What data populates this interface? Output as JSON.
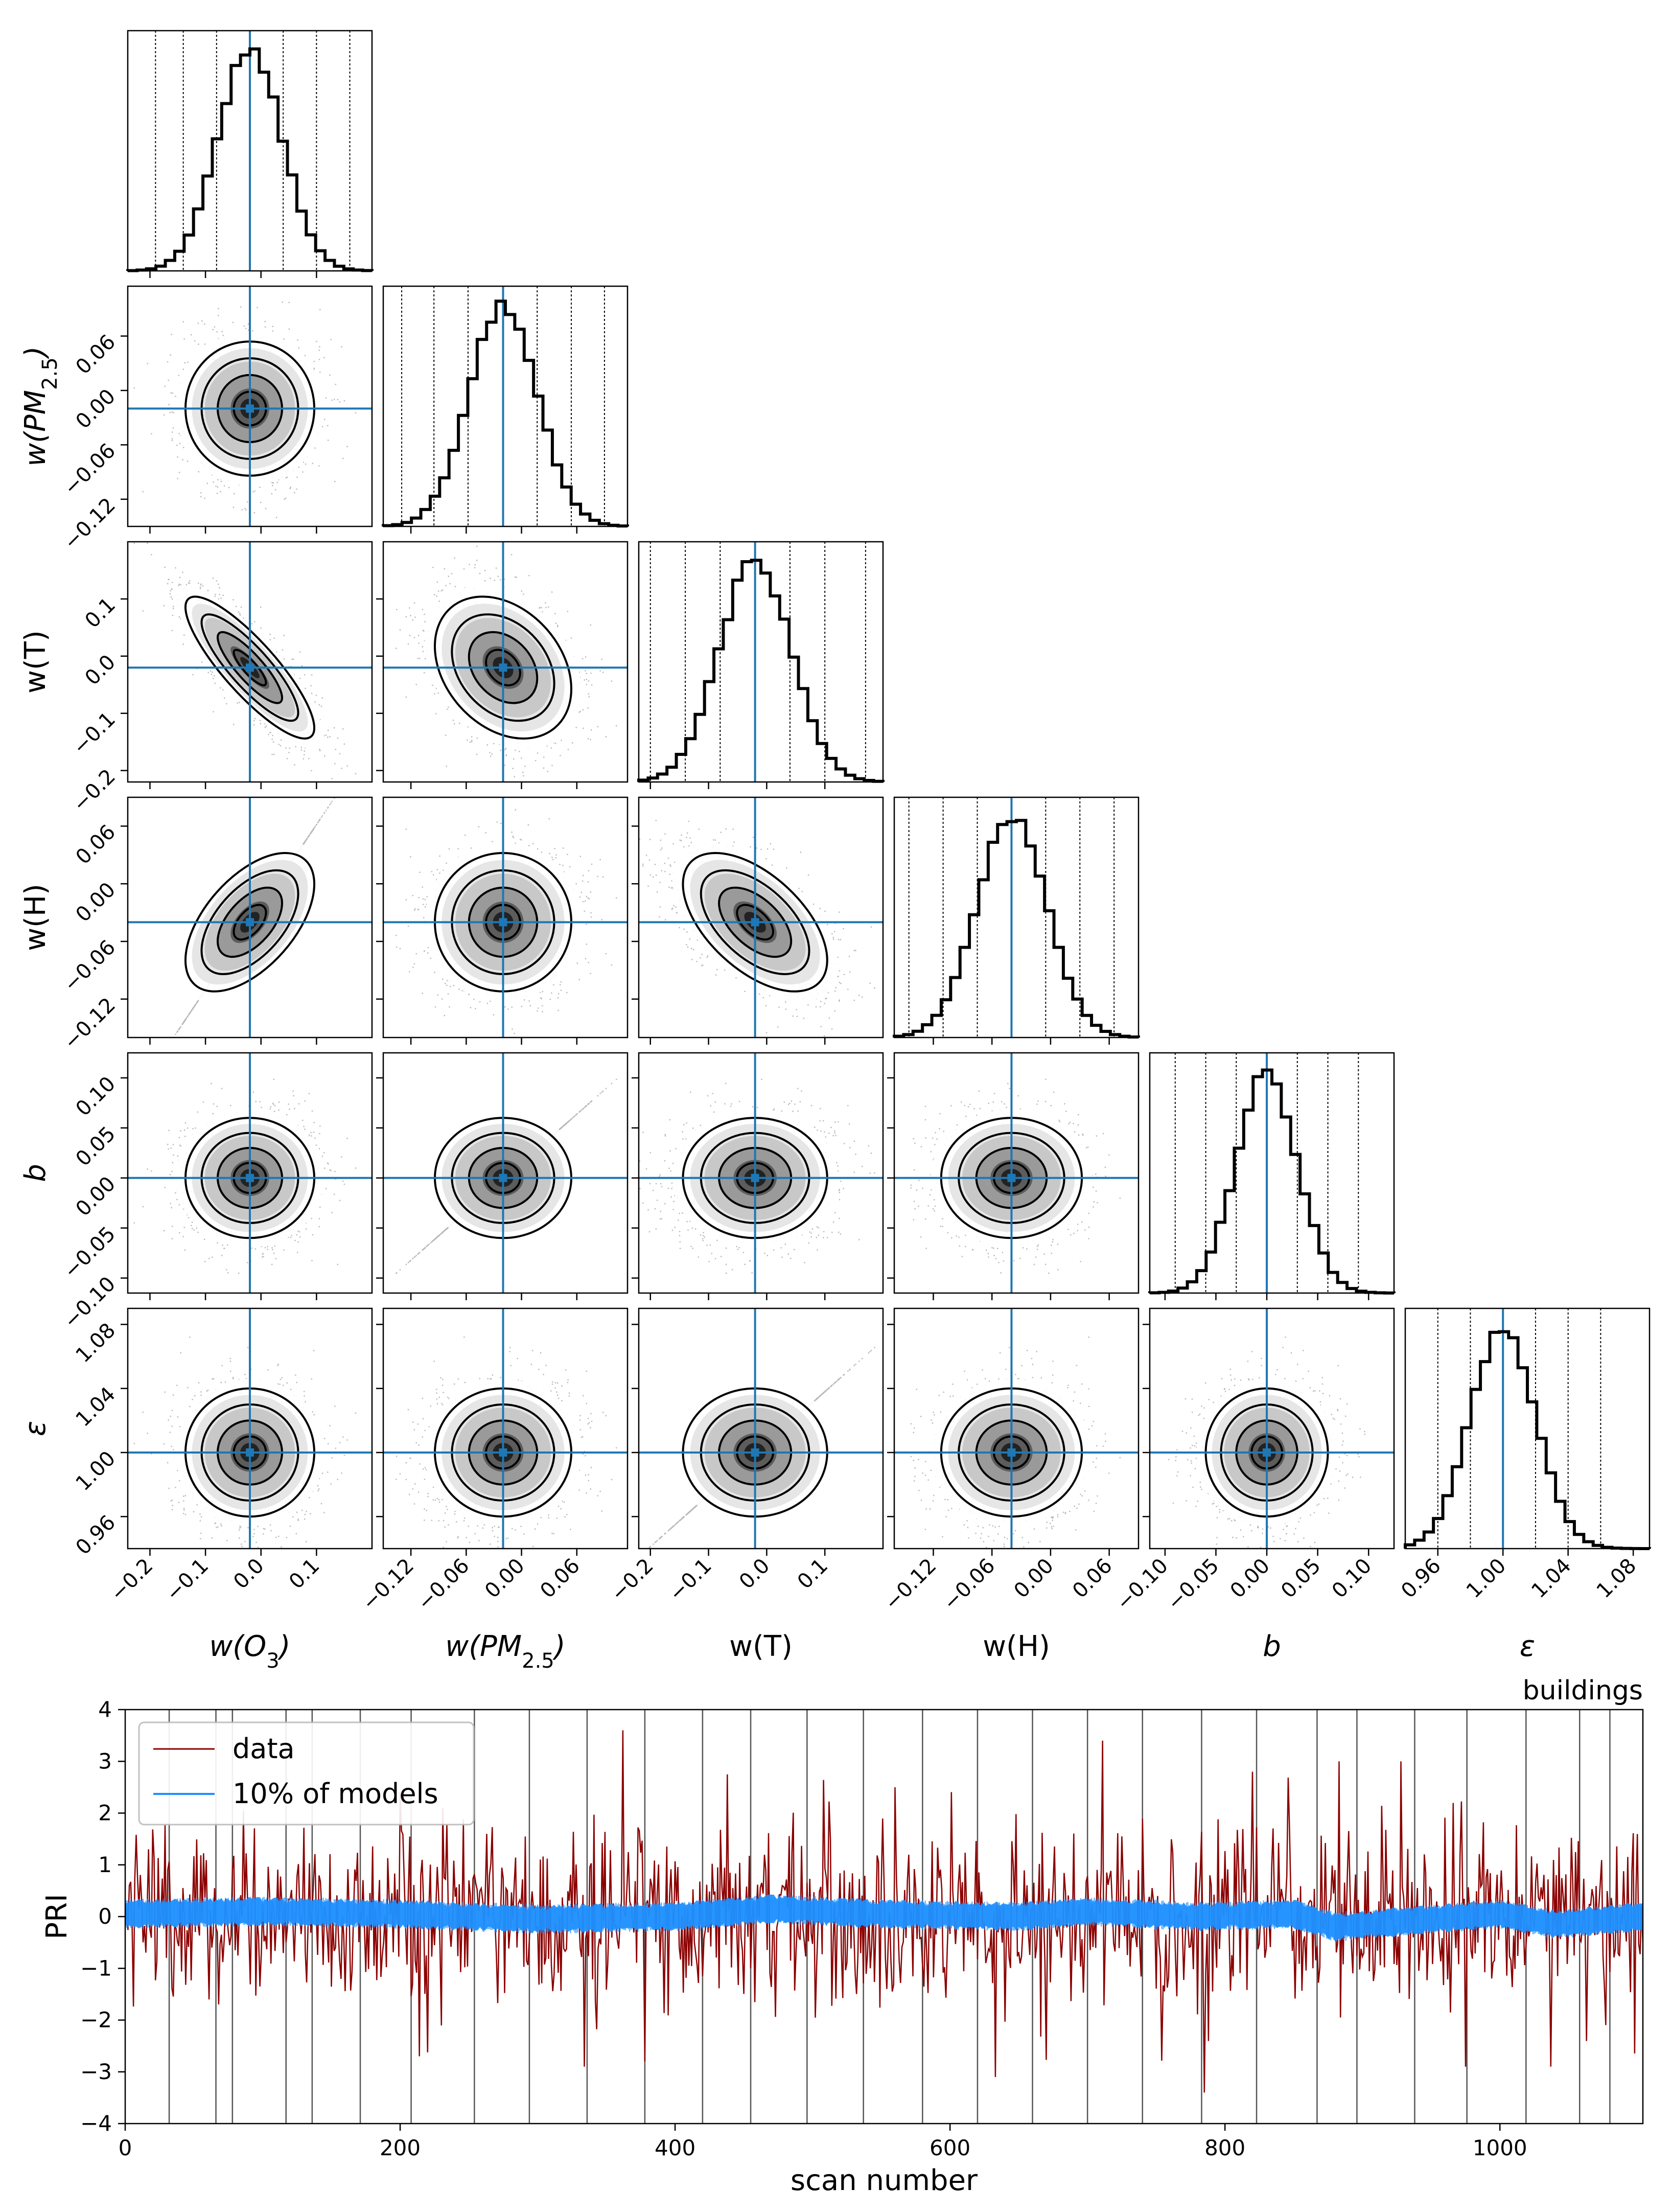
{
  "figure": {
    "colors": {
      "frame": "#000000",
      "truth": "#1f77b4",
      "hist": "#000000",
      "data_line": "#8b0000",
      "model_band": "#1e90ff",
      "vline": "#555555"
    },
    "hist_note": "",
    "legend_position": "upper-left"
  },
  "chart_data": [
    {
      "type": "corner",
      "parameters": [
        {
          "key": "wO3",
          "label_main": "w(O",
          "label_sub": "3",
          "label_end": ")",
          "italic": true,
          "ticks": [
            "−0.2",
            "−0.1",
            "0.0",
            "0.1"
          ],
          "tick_values": [
            -0.2,
            -0.1,
            0.0,
            0.1
          ],
          "range": [
            -0.24,
            0.2
          ],
          "truth": -0.02,
          "mean": -0.02,
          "std": 0.058,
          "quantile_lines": [
            -0.19,
            -0.14,
            -0.08,
            -0.02,
            0.04,
            0.1,
            0.16
          ]
        },
        {
          "key": "wPM",
          "label_main": "w(PM",
          "label_sub": "2.5",
          "label_end": ")",
          "italic": true,
          "ticks": [
            "−0.12",
            "−0.06",
            "0.00",
            "0.06"
          ],
          "tick_values": [
            -0.12,
            -0.06,
            0.0,
            0.06
          ],
          "range": [
            -0.15,
            0.115
          ],
          "truth": -0.02,
          "mean": -0.02,
          "std": 0.037,
          "quantile_lines": [
            -0.13,
            -0.095,
            -0.058,
            -0.02,
            0.017,
            0.054,
            0.09
          ]
        },
        {
          "key": "wT",
          "label_main": "w(T)",
          "label_sub": "",
          "label_end": "",
          "italic": false,
          "ticks": [
            "−0.2",
            "−0.1",
            "0.0",
            "0.1"
          ],
          "tick_values": [
            -0.2,
            -0.1,
            0.0,
            0.1
          ],
          "range": [
            -0.22,
            0.2
          ],
          "truth": -0.02,
          "mean": -0.02,
          "std": 0.062,
          "quantile_lines": [
            -0.2,
            -0.14,
            -0.08,
            -0.02,
            0.04,
            0.1,
            0.17
          ]
        },
        {
          "key": "wH",
          "label_main": "w(H)",
          "label_sub": "",
          "label_end": "",
          "italic": false,
          "ticks": [
            "−0.12",
            "−0.06",
            "0.00",
            "0.06"
          ],
          "tick_values": [
            -0.12,
            -0.06,
            0.0,
            0.06
          ],
          "range": [
            -0.16,
            0.09
          ],
          "truth": -0.04,
          "mean": -0.04,
          "std": 0.036,
          "quantile_lines": [
            -0.145,
            -0.11,
            -0.075,
            -0.04,
            -0.005,
            0.03,
            0.065
          ]
        },
        {
          "key": "b",
          "label_main": "b",
          "label_sub": "",
          "label_end": "",
          "italic": true,
          "ticks": [
            "−0.10",
            "−0.05",
            "0.00",
            "0.05",
            "0.10"
          ],
          "tick_values": [
            -0.1,
            -0.05,
            0.0,
            0.05,
            0.1
          ],
          "range": [
            -0.115,
            0.125
          ],
          "truth": 0.0,
          "mean": 0.0,
          "std": 0.03,
          "quantile_lines": [
            -0.09,
            -0.06,
            -0.03,
            0.0,
            0.03,
            0.06,
            0.09
          ]
        },
        {
          "key": "eps",
          "label_main": "ε",
          "label_sub": "",
          "label_end": "",
          "italic": true,
          "ticks": [
            "0.96",
            "1.00",
            "1.04",
            "1.08"
          ],
          "tick_values": [
            0.96,
            1.0,
            1.04,
            1.08
          ],
          "range": [
            0.94,
            1.09
          ],
          "truth": 1.0,
          "mean": 1.0,
          "std": 0.02,
          "quantile_lines": [
            0.94,
            0.96,
            0.98,
            1.0,
            1.02,
            1.04,
            1.06
          ]
        }
      ],
      "correlations": [
        [
          1,
          0,
          -0.85,
          0.55,
          0,
          0
        ],
        [
          0,
          1,
          -0.3,
          0,
          0,
          0
        ],
        [
          -0.85,
          -0.3,
          1,
          -0.55,
          0,
          0
        ],
        [
          0.55,
          0,
          -0.55,
          1,
          0,
          0
        ],
        [
          0,
          0,
          0,
          0,
          1,
          0
        ],
        [
          0,
          0,
          0,
          0,
          0,
          1
        ]
      ]
    },
    {
      "type": "line",
      "title": "buildings",
      "xlabel": "scan number",
      "ylabel": "PRI",
      "xlim": [
        0,
        1104
      ],
      "ylim": [
        -4,
        4
      ],
      "xticks": [
        0,
        200,
        400,
        600,
        800,
        1000
      ],
      "yticks": [
        -4,
        -3,
        -2,
        -1,
        0,
        1,
        2,
        3,
        4
      ],
      "series": [
        {
          "name": "data",
          "color": "#8b0000",
          "mean": 0.0,
          "std": 0.85,
          "notable_points": [
            [
              214,
              -2.7
            ],
            [
              334,
              -2.9
            ],
            [
              362,
              3.6
            ],
            [
              378,
              -2.8
            ],
            [
              560,
              2.5
            ],
            [
              633,
              -3.1
            ],
            [
              711,
              3.4
            ],
            [
              785,
              -3.4
            ],
            [
              820,
              2.8
            ],
            [
              883,
              3.0
            ],
            [
              928,
              3.0
            ],
            [
              975,
              -2.9
            ],
            [
              1037,
              -2.9
            ]
          ]
        },
        {
          "name": "10% of models",
          "color": "#1e90ff",
          "center": 0.0,
          "halfwidth": 0.22,
          "center_curve": [
            [
              0,
              0.05
            ],
            [
              100,
              0.1
            ],
            [
              200,
              0.05
            ],
            [
              300,
              -0.05
            ],
            [
              400,
              0.0
            ],
            [
              470,
              0.15
            ],
            [
              550,
              0.05
            ],
            [
              650,
              0.0
            ],
            [
              700,
              0.1
            ],
            [
              780,
              0.0
            ],
            [
              850,
              0.05
            ],
            [
              880,
              -0.2
            ],
            [
              950,
              -0.05
            ],
            [
              1000,
              0.05
            ],
            [
              1040,
              -0.15
            ],
            [
              1104,
              0.0
            ]
          ]
        }
      ],
      "vlines": [
        32,
        66,
        78,
        117,
        136,
        171,
        208,
        254,
        294,
        336,
        378,
        420,
        455,
        496,
        537,
        580,
        620,
        660,
        700,
        740,
        783,
        823,
        867,
        896,
        938,
        976,
        1019,
        1058,
        1080
      ]
    }
  ]
}
